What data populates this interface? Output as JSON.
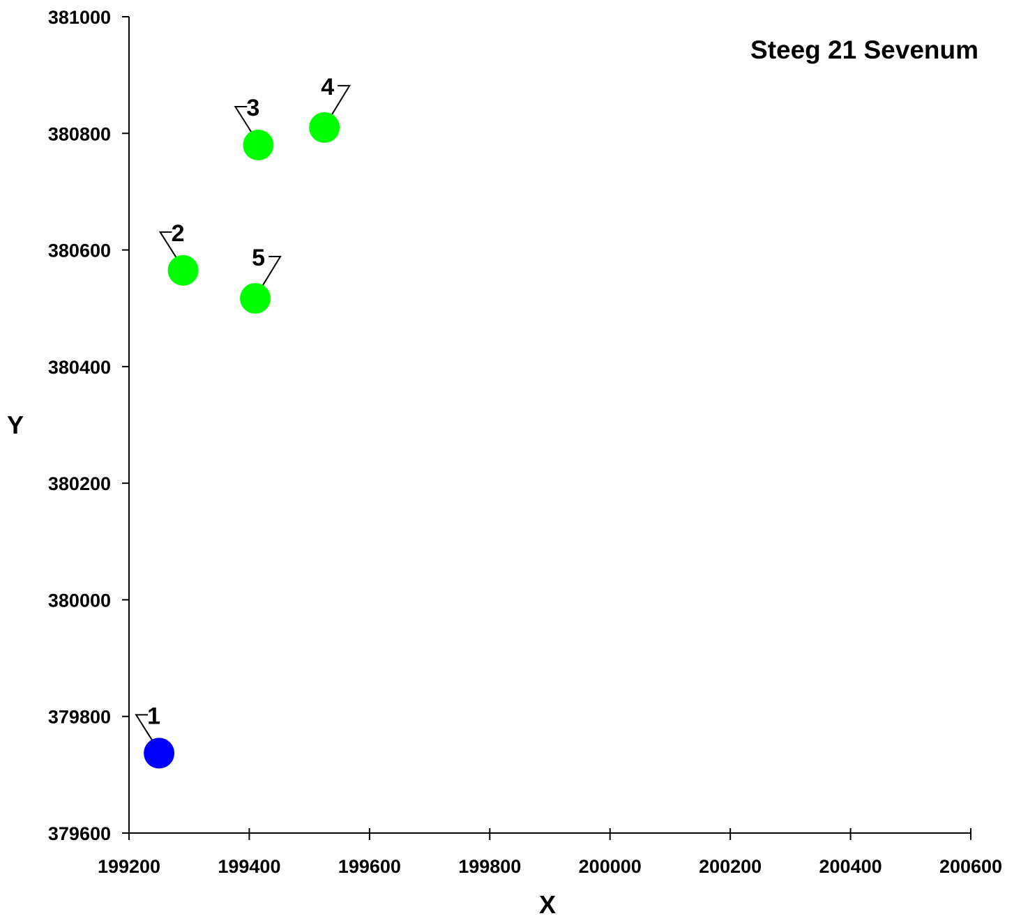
{
  "chart_data": {
    "type": "scatter",
    "title": "Steeg 21 Sevenum",
    "xlabel": "X",
    "ylabel": "Y",
    "xlim": [
      199200,
      200600
    ],
    "ylim": [
      379600,
      381000
    ],
    "x_ticks": [
      199200,
      199400,
      199600,
      199800,
      200000,
      200200,
      200400,
      200600
    ],
    "y_ticks": [
      379600,
      379800,
      380000,
      380200,
      380400,
      380600,
      380800,
      381000
    ],
    "x_tick_labels": [
      "199200",
      "199400",
      "199600",
      "199800",
      "200000",
      "200200",
      "200400",
      "200600"
    ],
    "y_tick_labels": [
      "379600",
      "379800",
      "380000",
      "380200",
      "380400",
      "380600",
      "380800",
      "381000"
    ],
    "grid": false,
    "points": [
      {
        "label": "1",
        "x": 199250,
        "y": 379737,
        "color": "#0000ff"
      },
      {
        "label": "2",
        "x": 199290,
        "y": 380565,
        "color": "#00ff00"
      },
      {
        "label": "3",
        "x": 199415,
        "y": 380780,
        "color": "#00ff00"
      },
      {
        "label": "4",
        "x": 199525,
        "y": 380810,
        "color": "#00ff00"
      },
      {
        "label": "5",
        "x": 199410,
        "y": 380517,
        "color": "#00ff00"
      }
    ]
  }
}
